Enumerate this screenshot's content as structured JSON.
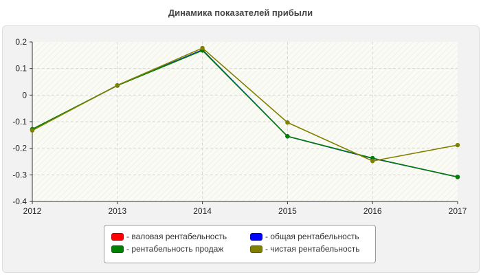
{
  "chart_data": {
    "type": "line",
    "title": "Динамика показателей прибыли",
    "xlabel": "",
    "ylabel": "",
    "categories": [
      "2012",
      "2013",
      "2014",
      "2015",
      "2016",
      "2017"
    ],
    "ylim": [
      -0.4,
      0.2
    ],
    "yticks": [
      "0.2",
      "0.1",
      "0",
      "-0.1",
      "-0.2",
      "-0.3",
      "-0.4"
    ],
    "grid": true,
    "legend_position": "bottom-center",
    "series": [
      {
        "name": "- валовая рентабельность",
        "color": "#ff0000",
        "values": [
          null,
          null,
          null,
          null,
          null,
          null
        ]
      },
      {
        "name": "- общая рентабельность",
        "color": "#0000ff",
        "values": [
          -0.13,
          0.036,
          0.17,
          -0.155,
          -0.238,
          -0.308
        ]
      },
      {
        "name": "- рентабельность продаж",
        "color": "#008000",
        "values": [
          -0.128,
          0.036,
          0.168,
          -0.155,
          -0.237,
          -0.308
        ]
      },
      {
        "name": "- чистая рентабельность",
        "color": "#808000",
        "values": [
          -0.133,
          0.037,
          0.177,
          -0.103,
          -0.248,
          -0.188
        ]
      }
    ]
  }
}
